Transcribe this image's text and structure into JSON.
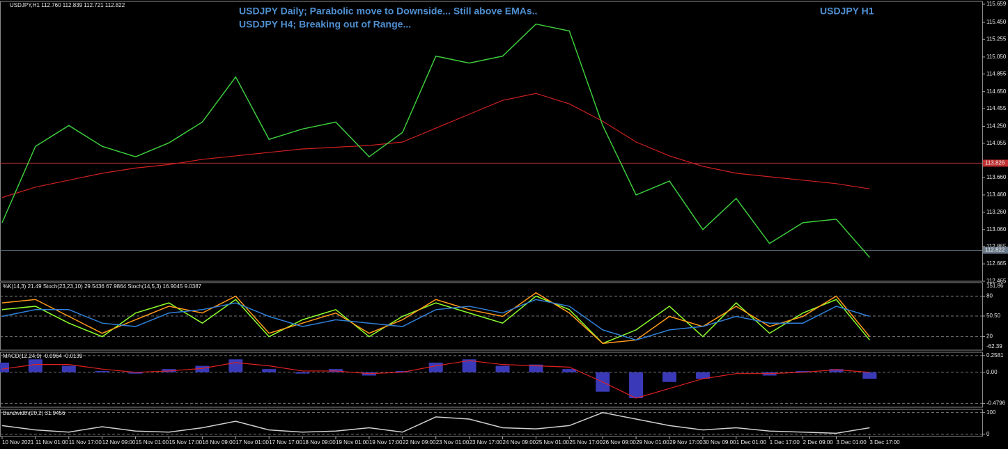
{
  "header": "USDJPY,H1 112.760 112.839 112.721 112.822",
  "annotations": [
    "USDJPY Daily; Parabolic move to Downside... Still above EMAs..",
    "USDJPY H4; Breaking out of Range...",
    "USDJPY H1"
  ],
  "chart_data": [
    {
      "type": "line",
      "color": "#3ccc3c",
      "values": [
        113.14,
        114.02,
        114.26,
        114.02,
        113.9,
        114.06,
        114.3,
        114.82,
        114.1,
        114.22,
        114.3,
        113.9,
        114.18,
        115.06,
        114.98,
        115.06,
        115.43,
        115.35,
        114.26,
        113.46,
        113.62,
        113.06,
        113.42,
        112.9,
        113.14,
        113.18,
        112.74
      ],
      "ma_values": [
        113.43,
        113.55,
        113.63,
        113.71,
        113.77,
        113.81,
        113.87,
        113.91,
        113.95,
        113.99,
        114.01,
        114.03,
        114.07,
        114.23,
        114.39,
        114.55,
        114.63,
        114.51,
        114.31,
        114.07,
        113.91,
        113.79,
        113.71,
        113.67,
        113.63,
        113.59,
        113.53
      ],
      "ma_color": "#d02020",
      "ylim": [
        112.465,
        115.691
      ],
      "yticks": [
        115.659,
        {
          "value": 115.45,
          "label": "115.450"
        },
        115.255,
        {
          "value": 115.05,
          "label": "115.050"
        },
        114.855,
        {
          "value": 114.65,
          "label": "114.650"
        },
        114.455,
        {
          "value": 114.25,
          "label": "114.250"
        },
        114.055,
        {
          "value": 113.66,
          "label": "113.660"
        },
        {
          "value": 113.46,
          "label": "113.460"
        },
        {
          "value": 113.26,
          "label": "113.260"
        },
        {
          "value": 113.06,
          "label": "113.060"
        },
        112.865,
        112.665,
        112.465
      ],
      "hlines": [
        113.826,
        112.822
      ],
      "hline_colors": [
        "#c03030",
        "#6a7a8a"
      ]
    },
    {
      "type": "line",
      "title": "%K(14,3) 21.49  Stoch(23,23,10) 29.5436 67.9864  Stoch(14,5,3) 16.9045 9.0387",
      "series": [
        {
          "color": "#8cff2a",
          "values": [
            60,
            65,
            40,
            20,
            55,
            70,
            40,
            75,
            20,
            45,
            60,
            20,
            50,
            70,
            55,
            40,
            80,
            60,
            10,
            30,
            65,
            20,
            70,
            25,
            55,
            75,
            15
          ]
        },
        {
          "color": "#ff9a1a",
          "values": [
            70,
            75,
            50,
            25,
            45,
            65,
            55,
            80,
            25,
            40,
            55,
            25,
            45,
            75,
            60,
            50,
            85,
            55,
            10,
            15,
            50,
            35,
            65,
            35,
            50,
            80,
            20
          ]
        },
        {
          "color": "#2f7fd8",
          "values": [
            50,
            60,
            60,
            40,
            35,
            55,
            60,
            70,
            50,
            35,
            45,
            40,
            35,
            60,
            65,
            55,
            75,
            65,
            30,
            15,
            30,
            35,
            50,
            40,
            40,
            65,
            50
          ]
        }
      ],
      "ylim": [
        0,
        100
      ],
      "yticks": [
        80,
        {
          "value": 50.5,
          "label": "50.50"
        },
        20
      ],
      "range_labels": [
        151.86,
        -62.39
      ]
    },
    {
      "type": "bar",
      "title": "MACD(12,24,9) -0.0964 -0.0139",
      "color": "#3a3ab8",
      "values": [
        0.15,
        0.2,
        0.1,
        0.02,
        -0.02,
        0.05,
        0.1,
        0.2,
        0.05,
        -0.02,
        0.05,
        -0.05,
        0.02,
        0.15,
        0.2,
        0.1,
        0.12,
        0.05,
        -0.3,
        -0.4,
        -0.15,
        -0.1,
        0.0,
        -0.05,
        0.02,
        0.05,
        -0.1
      ],
      "signal_values": [
        0.05,
        0.12,
        0.12,
        0.05,
        0.0,
        0.02,
        0.06,
        0.15,
        0.1,
        0.02,
        0.02,
        -0.02,
        0.0,
        0.1,
        0.18,
        0.12,
        0.1,
        0.08,
        -0.15,
        -0.4,
        -0.25,
        -0.1,
        -0.02,
        -0.02,
        0.0,
        0.04,
        0.0
      ],
      "signal_color": "#e02020",
      "ylim": [
        -0.54,
        0.31
      ],
      "yticks": [
        0.2581,
        {
          "value": 0,
          "label": "0.00"
        },
        -0.4796
      ]
    },
    {
      "type": "line",
      "title": "Bandwidth(20,2) 31.9456",
      "color": "#d0d0d0",
      "values": [
        40,
        20,
        10,
        35,
        15,
        10,
        30,
        60,
        20,
        10,
        15,
        30,
        10,
        80,
        70,
        30,
        25,
        40,
        100,
        70,
        40,
        20,
        30,
        15,
        10,
        5,
        30
      ],
      "ylim": [
        -10,
        115
      ],
      "yticks": [
        100,
        0
      ],
      "categories": [
        "10 Nov 2021",
        "11 Nov 01:00",
        "11 Nov 17:00",
        "12 Nov 09:00",
        "15 Nov 01:00",
        "15 Nov 17:00",
        "16 Nov 09:00",
        "17 Nov 01:00",
        "17 Nov 17:00",
        "18 Nov 09:00",
        "19 Nov 01:00",
        "19 Nov 17:00",
        "22 Nov 09:00",
        "23 Nov 01:00",
        "23 Nov 17:00",
        "24 Nov 09:00",
        "25 Nov 01:00",
        "25 Nov 17:00",
        "26 Nov 09:00",
        "29 Nov 01:00",
        "29 Nov 17:00",
        "30 Nov 09:00",
        "1 Dec 01:00",
        "1 Dec 17:00",
        "2 Dec 09:00",
        "3 Dec 01:00",
        "3 Dec 17:00"
      ]
    }
  ]
}
